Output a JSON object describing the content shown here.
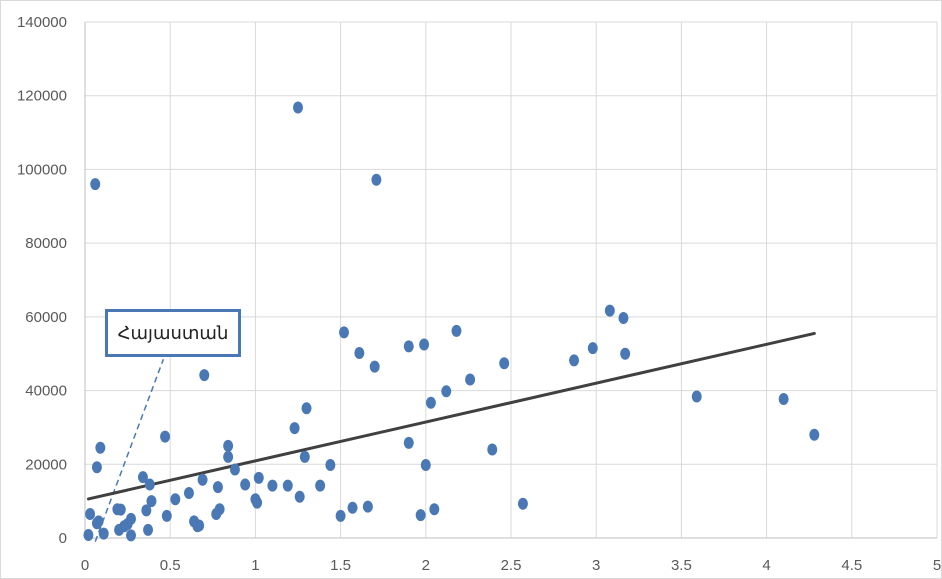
{
  "chart_data": {
    "type": "scatter",
    "title": "",
    "xlabel": "",
    "ylabel": "",
    "xlim": [
      0,
      5
    ],
    "ylim": [
      0,
      140000
    ],
    "x_ticks": [
      "0",
      "0.5",
      "1",
      "1.5",
      "2",
      "2.5",
      "3",
      "3.5",
      "4",
      "4.5",
      "5"
    ],
    "y_ticks": [
      "0",
      "20000",
      "40000",
      "60000",
      "80000",
      "100000",
      "120000",
      "140000"
    ],
    "grid": "vertical and horizontal",
    "legend": "none",
    "colors": {
      "points": "#4a78b4",
      "trendline": "#404040",
      "grid": "#d9d9d9",
      "callout_border": "#4a78b4"
    },
    "series": [
      {
        "type": "scatter",
        "points": [
          [
            0.02,
            800
          ],
          [
            0.03,
            6500
          ],
          [
            0.06,
            96000
          ],
          [
            0.07,
            19200
          ],
          [
            0.07,
            4000
          ],
          [
            0.08,
            4500
          ],
          [
            0.09,
            24500
          ],
          [
            0.11,
            1200
          ],
          [
            0.19,
            7800
          ],
          [
            0.2,
            2200
          ],
          [
            0.21,
            7700
          ],
          [
            0.23,
            3200
          ],
          [
            0.25,
            3800
          ],
          [
            0.27,
            5200
          ],
          [
            0.27,
            700
          ],
          [
            0.34,
            16500
          ],
          [
            0.36,
            7500
          ],
          [
            0.37,
            2200
          ],
          [
            0.38,
            14500
          ],
          [
            0.39,
            10000
          ],
          [
            0.47,
            27500
          ],
          [
            0.48,
            6000
          ],
          [
            0.53,
            10500
          ],
          [
            0.61,
            12200
          ],
          [
            0.64,
            4500
          ],
          [
            0.66,
            3200
          ],
          [
            0.67,
            3400
          ],
          [
            0.69,
            15800
          ],
          [
            0.7,
            44200
          ],
          [
            0.77,
            6500
          ],
          [
            0.78,
            13800
          ],
          [
            0.79,
            7800
          ],
          [
            0.84,
            25000
          ],
          [
            0.84,
            22000
          ],
          [
            0.88,
            18600
          ],
          [
            0.94,
            14500
          ],
          [
            1.0,
            10500
          ],
          [
            1.01,
            9600
          ],
          [
            1.02,
            16300
          ],
          [
            1.1,
            14200
          ],
          [
            1.19,
            14200
          ],
          [
            1.23,
            29800
          ],
          [
            1.25,
            116800
          ],
          [
            1.26,
            11200
          ],
          [
            1.29,
            22000
          ],
          [
            1.3,
            35200
          ],
          [
            1.38,
            14200
          ],
          [
            1.44,
            19800
          ],
          [
            1.5,
            6000
          ],
          [
            1.52,
            55800
          ],
          [
            1.57,
            8200
          ],
          [
            1.61,
            50200
          ],
          [
            1.66,
            8500
          ],
          [
            1.7,
            46500
          ],
          [
            1.71,
            97200
          ],
          [
            1.9,
            52000
          ],
          [
            1.9,
            25800
          ],
          [
            1.97,
            6200
          ],
          [
            1.99,
            52500
          ],
          [
            2.0,
            19800
          ],
          [
            2.03,
            36700
          ],
          [
            2.05,
            7800
          ],
          [
            2.12,
            39800
          ],
          [
            2.18,
            56200
          ],
          [
            2.26,
            43000
          ],
          [
            2.39,
            24000
          ],
          [
            2.46,
            47400
          ],
          [
            2.57,
            9300
          ],
          [
            2.87,
            48200
          ],
          [
            2.98,
            51500
          ],
          [
            3.08,
            61700
          ],
          [
            3.16,
            59700
          ],
          [
            3.17,
            50000
          ],
          [
            3.59,
            38400
          ],
          [
            4.1,
            37700
          ],
          [
            4.28,
            28000
          ]
        ]
      },
      {
        "type": "line",
        "name": "linear trendline",
        "points": [
          [
            0.02,
            10600
          ],
          [
            4.28,
            55500
          ]
        ]
      }
    ],
    "annotations": [
      {
        "text": "Հայաստան",
        "pointer_line": [
          [
            0.06,
            -1000
          ],
          [
            0.46,
            48500
          ]
        ]
      }
    ]
  }
}
